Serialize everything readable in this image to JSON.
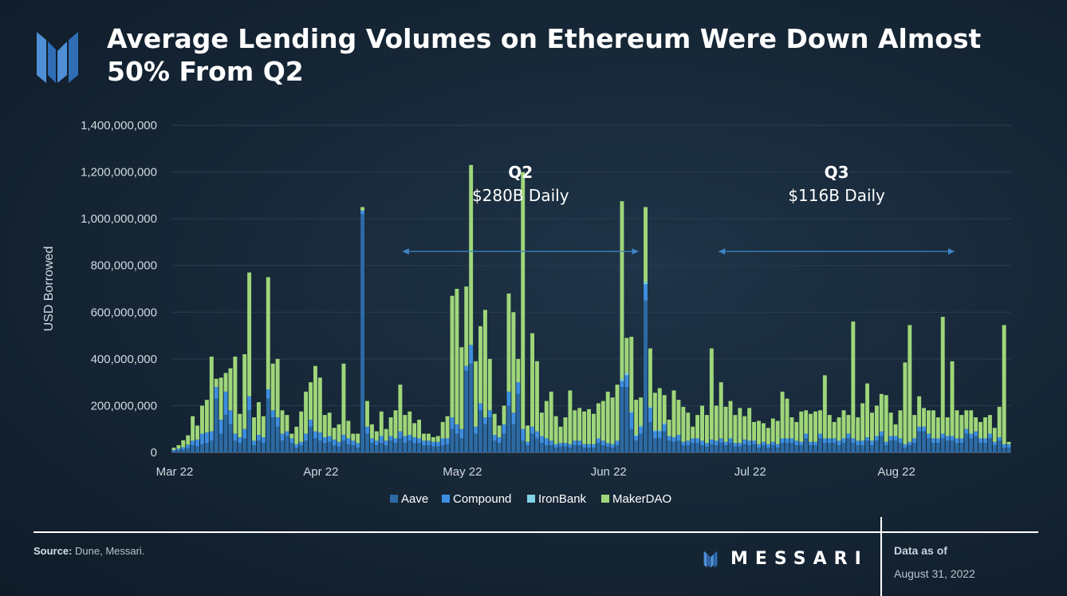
{
  "title": "Average Lending Volumes on Ethereum Were Down Almost 50% From Q2",
  "source_label": "Source:",
  "source_text": " Dune, Messari.",
  "brand": "MESSARI",
  "asof_label": "Data as of",
  "asof_date": "August 31, 2022",
  "colors": {
    "aave": "#2c6aa3",
    "compound": "#3d8ee0",
    "ironbank": "#7fd3e6",
    "makerdao": "#9fd67a",
    "arrow": "#3f86c4",
    "grid": "#2b3d50",
    "tick": "#d2d9e0"
  },
  "chart_data": {
    "type": "bar",
    "stacked": true,
    "title": "",
    "xlabel": "",
    "ylabel": "USD Borrowed",
    "ylim": [
      0,
      1400000000
    ],
    "yticks": [
      0,
      200000000,
      400000000,
      600000000,
      800000000,
      1000000000,
      1200000000,
      1400000000
    ],
    "ytick_labels": [
      "0",
      "200,000,000",
      "400,000,000",
      "600,000,000",
      "800,000,000",
      "1,000,000,000",
      "1,200,000,000",
      "1,400,000,000"
    ],
    "x_start_date": "2022-03-01",
    "x_end_date": "2022-08-31",
    "xticks": [
      {
        "label": "Mar 22",
        "day_index": 0
      },
      {
        "label": "Apr 22",
        "day_index": 31
      },
      {
        "label": "May 22",
        "day_index": 61
      },
      {
        "label": "Jun 22",
        "day_index": 92
      },
      {
        "label": "Jul 22",
        "day_index": 122
      },
      {
        "label": "Aug 22",
        "day_index": 153
      }
    ],
    "legend": {
      "position": "bottom",
      "entries": [
        "Aave",
        "Compound",
        "IronBank",
        "MakerDAO"
      ]
    },
    "annotations": [
      {
        "heading": "Q2",
        "text": "$280B Daily",
        "range_start_day": 49,
        "range_end_day": 99,
        "arrow_value": 860000000
      },
      {
        "heading": "Q3",
        "text": "$116B Daily",
        "range_start_day": 116,
        "range_end_day": 166,
        "arrow_value": 860000000
      }
    ],
    "series": [
      {
        "name": "Aave",
        "values": [
          5,
          8,
          12,
          18,
          30,
          25,
          35,
          40,
          50,
          230,
          80,
          160,
          120,
          50,
          40,
          60,
          180,
          30,
          50,
          40,
          230,
          150,
          110,
          50,
          70,
          40,
          20,
          30,
          50,
          110,
          60,
          50,
          40,
          45,
          30,
          25,
          50,
          35,
          30,
          20,
          1020,
          80,
          40,
          30,
          40,
          30,
          50,
          40,
          60,
          40,
          50,
          40,
          40,
          30,
          30,
          25,
          25,
          30,
          35,
          100,
          80,
          60,
          350,
          380,
          80,
          180,
          120,
          150,
          50,
          40,
          80,
          200,
          120,
          250,
          50,
          30,
          80,
          60,
          40,
          30,
          30,
          20,
          25,
          25,
          20,
          30,
          30,
          20,
          20,
          20,
          40,
          30,
          25,
          20,
          30,
          280,
          280,
          100,
          50,
          80,
          650,
          130,
          60,
          60,
          90,
          50,
          45,
          50,
          30,
          30,
          40,
          40,
          30,
          25,
          35,
          30,
          40,
          30,
          40,
          25,
          25,
          35,
          30,
          35,
          20,
          30,
          20,
          30,
          20,
          40,
          40,
          40,
          30,
          30,
          60,
          30,
          30,
          60,
          40,
          40,
          40,
          30,
          40,
          60,
          40,
          30,
          30,
          50,
          30,
          50,
          70,
          30,
          50,
          50,
          40,
          20,
          30,
          40,
          90,
          90,
          60,
          40,
          40,
          60,
          50,
          50,
          40,
          40,
          80,
          60,
          70,
          40,
          40,
          60,
          30,
          50,
          20,
          20
        ]
      },
      {
        "name": "Compound",
        "values": [
          5,
          8,
          10,
          15,
          20,
          30,
          45,
          45,
          40,
          50,
          60,
          100,
          60,
          30,
          25,
          40,
          60,
          20,
          25,
          25,
          40,
          30,
          40,
          30,
          20,
          20,
          15,
          15,
          30,
          30,
          30,
          35,
          25,
          25,
          25,
          20,
          25,
          25,
          20,
          20,
          15,
          30,
          20,
          20,
          30,
          20,
          20,
          20,
          30,
          30,
          25,
          25,
          20,
          20,
          20,
          20,
          20,
          30,
          25,
          50,
          40,
          40,
          20,
          80,
          30,
          30,
          30,
          30,
          25,
          25,
          40,
          60,
          50,
          50,
          50,
          15,
          30,
          30,
          30,
          30,
          20,
          15,
          15,
          15,
          15,
          20,
          20,
          15,
          15,
          15,
          20,
          20,
          15,
          15,
          20,
          25,
          50,
          70,
          20,
          30,
          70,
          60,
          30,
          30,
          30,
          20,
          20,
          25,
          15,
          20,
          20,
          20,
          20,
          15,
          20,
          20,
          20,
          15,
          20,
          15,
          15,
          20,
          20,
          15,
          15,
          15,
          15,
          15,
          15,
          20,
          20,
          20,
          20,
          15,
          20,
          15,
          15,
          20,
          20,
          20,
          20,
          20,
          20,
          20,
          20,
          20,
          20,
          15,
          20,
          20,
          20,
          15,
          20,
          20,
          20,
          15,
          15,
          20,
          20,
          20,
          20,
          20,
          20,
          20,
          20,
          20,
          20,
          20,
          20,
          20,
          20,
          20,
          20,
          20,
          15,
          15,
          15,
          15
        ]
      },
      {
        "name": "IronBank",
        "values": [
          0,
          0,
          0,
          0,
          0,
          0,
          0,
          0,
          0,
          0,
          0,
          0,
          0,
          0,
          0,
          0,
          0,
          0,
          0,
          0,
          0,
          0,
          0,
          0,
          0,
          0,
          0,
          0,
          0,
          0,
          0,
          0,
          0,
          0,
          0,
          0,
          0,
          0,
          0,
          0,
          0,
          0,
          0,
          0,
          0,
          0,
          0,
          0,
          0,
          0,
          0,
          0,
          0,
          0,
          0,
          0,
          0,
          0,
          0,
          0,
          0,
          0,
          0,
          0,
          0,
          0,
          0,
          0,
          0,
          0,
          0,
          0,
          0,
          0,
          0,
          0,
          0,
          0,
          0,
          0,
          0,
          0,
          0,
          0,
          0,
          0,
          0,
          0,
          0,
          0,
          0,
          0,
          0,
          0,
          0,
          10,
          10,
          5,
          5,
          5,
          10,
          5,
          5,
          5,
          5,
          0,
          0,
          0,
          0,
          0,
          0,
          0,
          0,
          0,
          0,
          0,
          0,
          0,
          0,
          0,
          0,
          0,
          0,
          0,
          0,
          0,
          0,
          0,
          0,
          0,
          0,
          0,
          0,
          0,
          0,
          0,
          0,
          0,
          0,
          0,
          0,
          0,
          0,
          0,
          0,
          0,
          0,
          0,
          0,
          0,
          0,
          0,
          0,
          0,
          0,
          0,
          0,
          0,
          0,
          0,
          0,
          0,
          0,
          0,
          0,
          0,
          0,
          0,
          0,
          0,
          0,
          0,
          0,
          0,
          0,
          0,
          0,
          0
        ]
      },
      {
        "name": "MakerDAO",
        "values": [
          10,
          15,
          30,
          40,
          105,
          60,
          120,
          140,
          320,
          35,
          180,
          80,
          180,
          330,
          100,
          320,
          530,
          100,
          140,
          90,
          480,
          200,
          250,
          100,
          70,
          20,
          75,
          130,
          180,
          160,
          280,
          235,
          95,
          100,
          50,
          75,
          305,
          75,
          30,
          40,
          15,
          110,
          60,
          40,
          105,
          50,
          80,
          120,
          200,
          90,
          100,
          60,
          80,
          30,
          30,
          20,
          25,
          70,
          95,
          520,
          580,
          350,
          340,
          770,
          280,
          330,
          460,
          220,
          90,
          50,
          80,
          420,
          430,
          100,
          1100,
          70,
          400,
          300,
          100,
          160,
          210,
          120,
          70,
          110,
          230,
          130,
          140,
          140,
          150,
          130,
          150,
          170,
          220,
          200,
          240,
          760,
          150,
          320,
          150,
          120,
          320,
          250,
          160,
          180,
          120,
          70,
          200,
          150,
          150,
          120,
          50,
          100,
          150,
          120,
          390,
          150,
          240,
          150,
          160,
          120,
          150,
          100,
          140,
          80,
          100,
          80,
          70,
          100,
          100,
          200,
          170,
          90,
          80,
          130,
          100,
          120,
          130,
          100,
          270,
          100,
          70,
          100,
          120,
          80,
          500,
          100,
          160,
          230,
          120,
          130,
          160,
          200,
          100,
          50,
          120,
          350,
          500,
          100,
          130,
          80,
          100,
          120,
          90,
          500,
          80,
          320,
          120,
          100,
          80,
          100,
          60,
          70,
          90,
          80,
          60,
          130,
          510,
          10
        ]
      }
    ]
  }
}
